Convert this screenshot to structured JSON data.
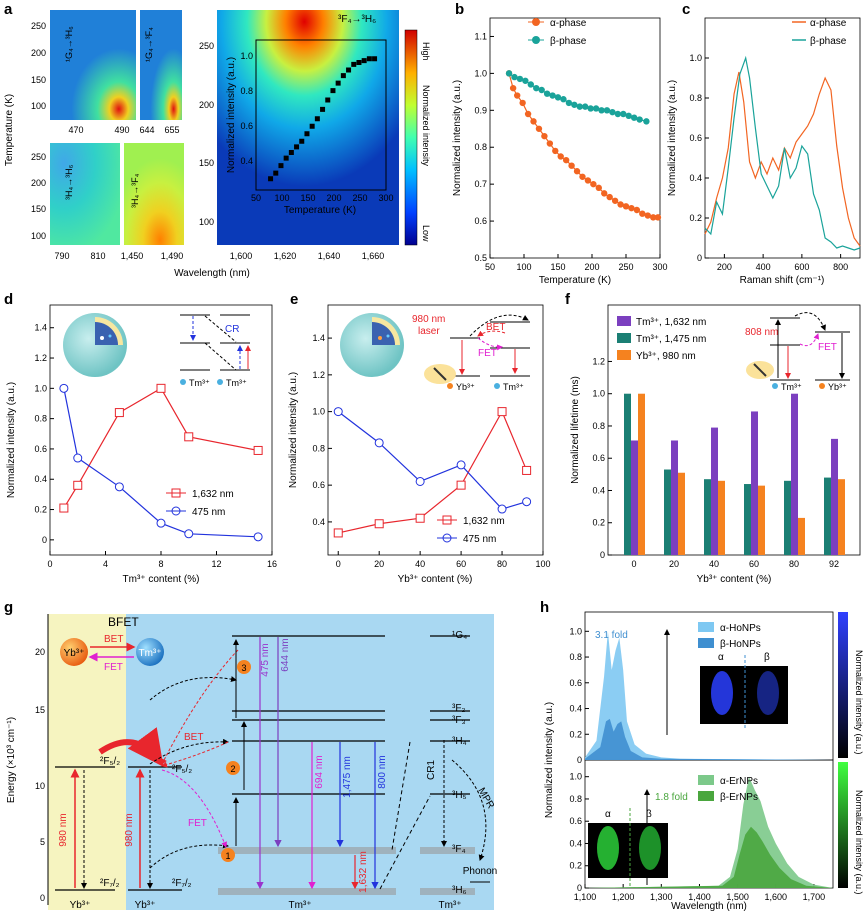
{
  "colors": {
    "alpha": "#f26522",
    "beta": "#1aa39a",
    "red": "#e8262d",
    "blue": "#2233dd",
    "purple": "#7b3fbf",
    "teal": "#1b7f74",
    "orange": "#f5821f",
    "magenta": "#e020d0",
    "bg_blue": "#a9d8f2",
    "bg_yellow": "#f6f4c0",
    "ho_light": "#7ec8f2",
    "ho_dark": "#3f8fd0",
    "er_light": "#7cc98a",
    "er_dark": "#4aa63e"
  },
  "panels": {
    "a": "a",
    "b": "b",
    "c": "c",
    "d": "d",
    "e": "e",
    "f": "f",
    "g": "g",
    "h": "h"
  },
  "panel_a": {
    "xlabel": "Wavelength (nm)",
    "ylabel": "Temperature (K)",
    "ylabel2": "Normalized intensity (a.u.)",
    "ticks_small_x": [
      "470",
      "490",
      "644",
      "655",
      "790",
      "810",
      "1,450",
      "1,490"
    ],
    "ticks_small_y_top": [
      "250",
      "200",
      "150",
      "100"
    ],
    "ticks_small_y_bot": [
      "250",
      "200",
      "150",
      "100"
    ],
    "ticks_big_x": [
      "1,600",
      "1,620",
      "1,640",
      "1,660"
    ],
    "ticks_big_y": [
      "250",
      "200",
      "150",
      "100"
    ],
    "colorbar_high": "High",
    "colorbar_low": "Low",
    "colorbar_label": "Normalized intensity",
    "label_1G4_3H6": "¹G₄→³H₆",
    "label_1G4_3F4": "¹G₄→³F₄",
    "label_3H4_3H6": "³H₄→³H₆",
    "label_3H4_3F4": "³H₄→³F₄",
    "label_3F4_3H6": "³F₄→³H₆",
    "inset_xlabel": "Temperature (K)",
    "inset_x_ticks": [
      "50",
      "100",
      "150",
      "200",
      "250",
      "300"
    ],
    "inset_y_ticks": [
      "0.4",
      "0.6",
      "0.8",
      "1.0"
    ]
  },
  "chart_data": [
    {
      "panel": "a-inset",
      "type": "scatter",
      "xlabel": "Temperature (K)",
      "ylabel": "Normalized intensity (a.u.)",
      "xlim": [
        50,
        300
      ],
      "ylim": [
        0.3,
        1.1
      ],
      "x": [
        78,
        88,
        98,
        108,
        118,
        128,
        138,
        148,
        158,
        168,
        178,
        188,
        198,
        208,
        218,
        228,
        238,
        248,
        258,
        268,
        278
      ],
      "y": [
        0.36,
        0.39,
        0.43,
        0.47,
        0.5,
        0.53,
        0.56,
        0.6,
        0.64,
        0.68,
        0.73,
        0.78,
        0.83,
        0.87,
        0.91,
        0.94,
        0.97,
        0.98,
        0.99,
        1.0,
        1.0
      ]
    },
    {
      "panel": "b",
      "type": "line",
      "xlabel": "Temperature (K)",
      "ylabel": "Normalized intensity (a.u.)",
      "xlim": [
        50,
        300
      ],
      "ylim": [
        0.5,
        1.15
      ],
      "x_ticks": [
        "50",
        "100",
        "150",
        "200",
        "250",
        "300"
      ],
      "y_ticks": [
        "0.5",
        "0.6",
        "0.7",
        "0.8",
        "0.9",
        "1.0",
        "1.1"
      ],
      "series": [
        {
          "name": "α-phase",
          "x": [
            78,
            84,
            90,
            98,
            106,
            114,
            122,
            130,
            138,
            146,
            154,
            162,
            170,
            178,
            186,
            194,
            202,
            210,
            218,
            226,
            234,
            242,
            250,
            258,
            266,
            274,
            282,
            290,
            297
          ],
          "y": [
            1.0,
            0.96,
            0.94,
            0.92,
            0.89,
            0.87,
            0.85,
            0.83,
            0.81,
            0.79,
            0.775,
            0.765,
            0.75,
            0.735,
            0.72,
            0.71,
            0.7,
            0.69,
            0.675,
            0.665,
            0.655,
            0.645,
            0.64,
            0.635,
            0.63,
            0.62,
            0.615,
            0.61,
            0.61
          ]
        },
        {
          "name": "β-phase",
          "x": [
            78,
            86,
            94,
            102,
            110,
            118,
            126,
            134,
            142,
            150,
            158,
            166,
            174,
            182,
            190,
            198,
            206,
            214,
            222,
            230,
            238,
            246,
            254,
            262,
            270,
            280
          ],
          "y": [
            1.0,
            0.99,
            0.985,
            0.98,
            0.97,
            0.96,
            0.955,
            0.945,
            0.94,
            0.935,
            0.93,
            0.92,
            0.915,
            0.91,
            0.91,
            0.905,
            0.905,
            0.9,
            0.9,
            0.895,
            0.89,
            0.89,
            0.885,
            0.88,
            0.875,
            0.87
          ]
        }
      ]
    },
    {
      "panel": "c",
      "type": "line",
      "xlabel": "Raman shift (cm⁻¹)",
      "ylabel": "Normalized intensity (a.u.)",
      "xlim": [
        100,
        900
      ],
      "ylim": [
        0,
        1.2
      ],
      "x_ticks": [
        "200",
        "400",
        "600",
        "800"
      ],
      "y_ticks": [
        "0",
        "0.2",
        "0.4",
        "0.6",
        "0.8",
        "1.0"
      ],
      "series": [
        {
          "name": "α-phase",
          "x": [
            100,
            130,
            160,
            190,
            220,
            250,
            275,
            300,
            330,
            360,
            390,
            420,
            450,
            480,
            510,
            540,
            570,
            600,
            630,
            660,
            690,
            720,
            750,
            780,
            810,
            840,
            870,
            900
          ],
          "y": [
            0.12,
            0.18,
            0.3,
            0.4,
            0.55,
            0.82,
            0.93,
            0.78,
            0.48,
            0.4,
            0.48,
            0.42,
            0.5,
            0.44,
            0.55,
            0.5,
            0.58,
            0.62,
            0.66,
            0.72,
            0.82,
            0.9,
            0.84,
            0.56,
            0.35,
            0.2,
            0.1,
            0.06
          ]
        },
        {
          "name": "β-phase",
          "x": [
            100,
            130,
            160,
            190,
            220,
            250,
            280,
            310,
            330,
            360,
            390,
            420,
            450,
            480,
            510,
            540,
            570,
            600,
            630,
            660,
            690,
            720,
            750,
            780,
            810,
            840,
            870,
            900
          ],
          "y": [
            0.15,
            0.12,
            0.28,
            0.22,
            0.45,
            0.7,
            0.92,
            1.0,
            0.9,
            0.65,
            0.42,
            0.36,
            0.3,
            0.36,
            0.55,
            0.4,
            0.45,
            0.56,
            0.52,
            0.32,
            0.24,
            0.1,
            0.08,
            0.05,
            0.06,
            0.05,
            0.04,
            0.05
          ]
        }
      ]
    },
    {
      "panel": "d",
      "type": "line",
      "xlabel": "Tm³⁺ content (%)",
      "ylabel": "Normalized intensity (a.u.)",
      "xlim": [
        0,
        16
      ],
      "ylim": [
        -0.1,
        1.55
      ],
      "x_ticks": [
        "0",
        "4",
        "8",
        "12",
        "16"
      ],
      "y_ticks": [
        "0",
        "0.2",
        "0.4",
        "0.6",
        "0.8",
        "1.0",
        "1.2",
        "1.4"
      ],
      "series": [
        {
          "name": "1,632 nm",
          "x": [
            1,
            2,
            5,
            8,
            10,
            15
          ],
          "y": [
            0.21,
            0.36,
            0.84,
            1.0,
            0.68,
            0.59
          ]
        },
        {
          "name": "475 nm",
          "x": [
            1,
            2,
            5,
            8,
            10,
            15
          ],
          "y": [
            1.0,
            0.54,
            0.35,
            0.11,
            0.04,
            0.02
          ]
        }
      ]
    },
    {
      "panel": "e",
      "type": "line",
      "xlabel": "Yb³⁺ content (%)",
      "ylabel": "Normalized intensity (a.u.)",
      "xlim": [
        -5,
        100
      ],
      "ylim": [
        0.22,
        1.58
      ],
      "x_ticks": [
        "0",
        "20",
        "40",
        "60",
        "80",
        "100"
      ],
      "y_ticks": [
        "0.4",
        "0.6",
        "0.8",
        "1.0",
        "1.2",
        "1.4"
      ],
      "series": [
        {
          "name": "1,632 nm",
          "x": [
            0,
            20,
            40,
            60,
            80,
            92
          ],
          "y": [
            0.34,
            0.39,
            0.42,
            0.6,
            1.0,
            0.68
          ]
        },
        {
          "name": "475 nm",
          "x": [
            0,
            20,
            40,
            60,
            80,
            92
          ],
          "y": [
            1.0,
            0.83,
            0.62,
            0.71,
            0.47,
            0.51
          ]
        }
      ]
    },
    {
      "panel": "f",
      "type": "bar",
      "xlabel": "Yb³⁺ content (%)",
      "ylabel": "Normalized lifetime (ms)",
      "ylim": [
        0,
        1.55
      ],
      "categories": [
        "0",
        "20",
        "40",
        "60",
        "80",
        "92"
      ],
      "y_ticks": [
        "0",
        "0.2",
        "0.4",
        "0.6",
        "0.8",
        "1.0",
        "1.2"
      ],
      "series": [
        {
          "name": "Tm³⁺, 1,475 nm",
          "values": [
            1.0,
            0.53,
            0.47,
            0.44,
            0.46,
            0.48
          ]
        },
        {
          "name": "Tm³⁺, 1,632 nm",
          "values": [
            0.71,
            0.71,
            0.79,
            0.89,
            1.0,
            0.72
          ]
        },
        {
          "name": "Yb³⁺, 980 nm",
          "values": [
            1.0,
            0.51,
            0.46,
            0.43,
            0.23,
            0.47
          ]
        }
      ]
    },
    {
      "panel": "h",
      "type": "area",
      "xlabel": "Wavelength (nm)",
      "ylabel": "Normalized intensity (a.u.)",
      "xlim": [
        1100,
        1750
      ],
      "x_ticks": [
        "1,100",
        "1,200",
        "1,300",
        "1,400",
        "1,500",
        "1,600",
        "1,700"
      ],
      "y_ticks": [
        "0",
        "0.2",
        "0.4",
        "0.6",
        "0.8",
        "1.0"
      ],
      "series": [
        {
          "name": "α-HoNPs",
          "x": [
            1100,
            1130,
            1150,
            1160,
            1170,
            1180,
            1190,
            1200,
            1210,
            1230,
            1260,
            1300,
            1350,
            1750
          ],
          "y": [
            0.02,
            0.15,
            0.65,
            1.0,
            0.7,
            0.85,
            0.95,
            0.7,
            0.3,
            0.12,
            0.05,
            0.02,
            0.01,
            0
          ]
        },
        {
          "name": "β-HoNPs",
          "x": [
            1100,
            1140,
            1155,
            1165,
            1175,
            1185,
            1195,
            1205,
            1220,
            1250,
            1300,
            1750
          ],
          "y": [
            0.01,
            0.1,
            0.3,
            0.32,
            0.22,
            0.28,
            0.3,
            0.18,
            0.07,
            0.02,
            0.01,
            0
          ]
        },
        {
          "name": "α-ErNPs",
          "x": [
            1100,
            1450,
            1480,
            1500,
            1515,
            1530,
            1545,
            1560,
            1580,
            1600,
            1630,
            1660,
            1700,
            1750
          ],
          "y": [
            0,
            0.02,
            0.1,
            0.35,
            0.75,
            1.0,
            0.88,
            0.78,
            0.55,
            0.4,
            0.22,
            0.1,
            0.03,
            0
          ]
        },
        {
          "name": "β-ErNPs",
          "x": [
            1100,
            1460,
            1490,
            1505,
            1520,
            1535,
            1550,
            1565,
            1585,
            1610,
            1640,
            1680,
            1750
          ],
          "y": [
            0,
            0.02,
            0.1,
            0.3,
            0.48,
            0.55,
            0.5,
            0.42,
            0.3,
            0.18,
            0.08,
            0.02,
            0
          ]
        }
      ]
    }
  ],
  "legend": {
    "alpha": "α-phase",
    "beta": "β-phase",
    "nm1632": "1,632 nm",
    "nm475": "475 nm",
    "f_tm1632": "Tm³⁺, 1,632 nm",
    "f_tm1475": "Tm³⁺, 1,475 nm",
    "f_yb980": "Yb³⁺, 980 nm",
    "ho_alpha": "α-HoNPs",
    "ho_beta": "β-HoNPs",
    "er_alpha": "α-ErNPs",
    "er_beta": "β-ErNPs"
  },
  "panel_d": {
    "cr": "CR",
    "tm1": "Tm³⁺",
    "tm2": "Tm³⁺"
  },
  "panel_e": {
    "laser": "980 nm",
    "laser2": "laser",
    "bet": "BET",
    "fet": "FET",
    "yb": "Yb³⁺",
    "tm": "Tm³⁺"
  },
  "panel_f": {
    "laser": "808 nm",
    "fet": "FET",
    "tm": "Tm³⁺",
    "yb": "Yb³⁺"
  },
  "panel_g": {
    "bfet": "BFET",
    "bet": "BET",
    "fet": "FET",
    "yb": "Yb³⁺",
    "tm": "Tm³⁺",
    "ylabel": "Energy (×10³ cm⁻¹)",
    "y_ticks": [
      "0",
      "5",
      "10",
      "15",
      "20"
    ],
    "lvl_2F52": "²F₅/₂",
    "lvl_2F72": "²F₇/₂",
    "lvl_2F52b": "²F₅/₂",
    "lvl_2F72b": "²F₇/₂",
    "lvl_1G4": "¹G₄",
    "lvl_3F2": "³F₂",
    "lvl_3F3": "³F₃",
    "lvl_3H4": "³H₄",
    "lvl_3H5": "³H₅",
    "lvl_3F4": "³F₄",
    "lvl_3H6": "³H₆",
    "nm980a": "980 nm",
    "nm980b": "980 nm",
    "nm475": "475 nm",
    "nm644": "644 nm",
    "nm694": "694 nm",
    "nm1475": "1,475 nm",
    "nm800": "800 nm",
    "nm1632": "1,632 nm",
    "cr1": "CR1",
    "mpr": "MPR",
    "phonon": "Phonon",
    "bet2": "BET",
    "fet2": "FET",
    "step1": "1",
    "step2": "2",
    "step3": "3",
    "bot_yb1": "Yb³⁺",
    "bot_yb2": "Yb³⁺",
    "bot_tm1": "Tm³⁺",
    "bot_tm2": "Tm³⁺"
  },
  "panel_h": {
    "ho_fold": "3.1 fold",
    "er_fold": "1.8 fold",
    "a": "α",
    "b": "β",
    "a2": "α",
    "b2": "β",
    "cb_label": "Normalized intensity (a.u.)"
  }
}
